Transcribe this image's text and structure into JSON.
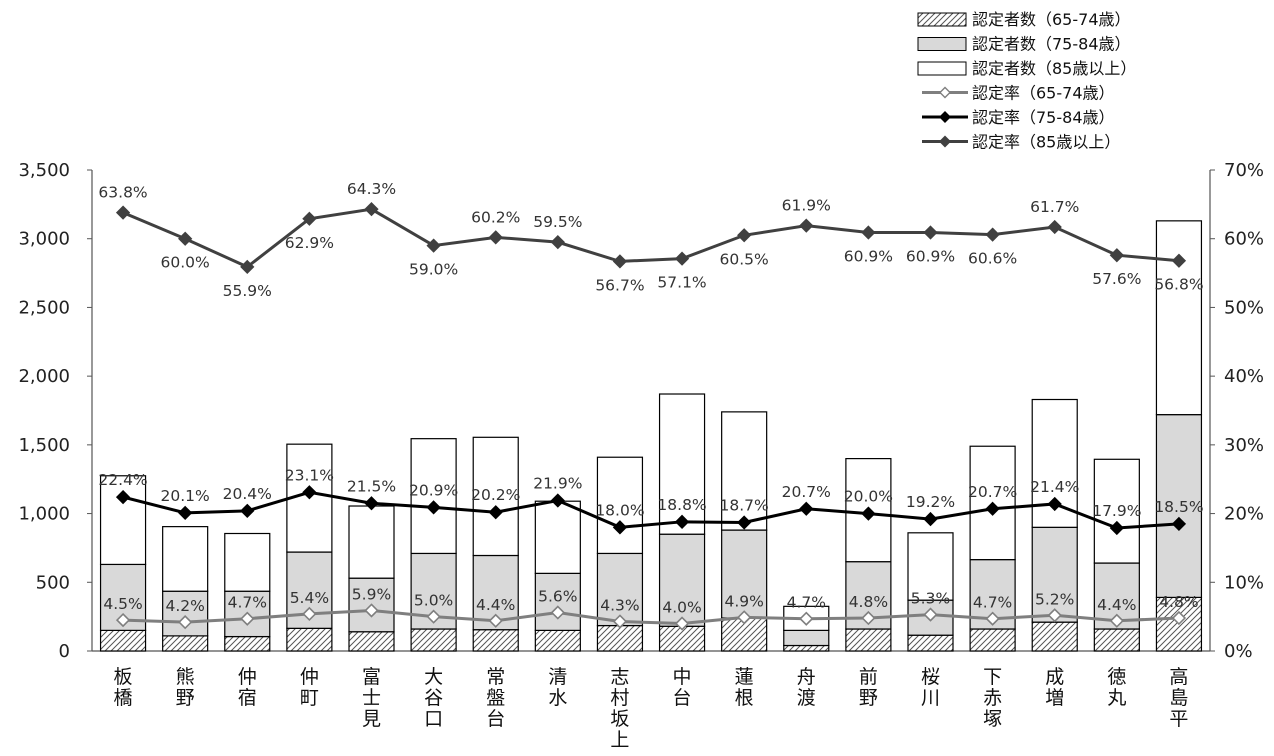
{
  "chart_data": {
    "type": "bar",
    "subtype": "stacked bar with line overlay (dual axis)",
    "categories": [
      "板橋",
      "熊野",
      "仲宿",
      "仲町",
      "富士見",
      "大谷口",
      "常盤台",
      "清水",
      "志村坂上",
      "中台",
      "蓮根",
      "舟渡",
      "前野",
      "桜川",
      "下赤塚",
      "成増",
      "徳丸",
      "高島平"
    ],
    "category_lines": [
      [
        "板",
        "橋"
      ],
      [
        "熊",
        "野"
      ],
      [
        "仲",
        "宿"
      ],
      [
        "仲",
        "町"
      ],
      [
        "富",
        "士",
        "見"
      ],
      [
        "大",
        "谷",
        "口"
      ],
      [
        "常",
        "盤",
        "台"
      ],
      [
        "清",
        "水"
      ],
      [
        "志",
        "村",
        "坂",
        "上"
      ],
      [
        "中",
        "台"
      ],
      [
        "蓮",
        "根"
      ],
      [
        "舟",
        "渡"
      ],
      [
        "前",
        "野"
      ],
      [
        "桜",
        "川"
      ],
      [
        "下",
        "赤",
        "塚"
      ],
      [
        "成",
        "増"
      ],
      [
        "徳",
        "丸"
      ],
      [
        "高",
        "島",
        "平"
      ]
    ],
    "series": [
      {
        "name": "認定者数（65-74歳）",
        "kind": "bar",
        "axis": "left",
        "pattern": "hatch",
        "values": [
          150,
          110,
          105,
          165,
          140,
          160,
          155,
          150,
          185,
          180,
          240,
          40,
          160,
          115,
          160,
          210,
          160,
          390
        ]
      },
      {
        "name": "認定者数（75-84歳）",
        "kind": "bar",
        "axis": "left",
        "color": "#d9d9d9",
        "values": [
          480,
          325,
          330,
          555,
          390,
          550,
          540,
          415,
          525,
          670,
          640,
          110,
          490,
          255,
          505,
          690,
          480,
          1330
        ]
      },
      {
        "name": "認定者数（85歳以上）",
        "kind": "bar",
        "axis": "left",
        "color": "#ffffff",
        "values": [
          645,
          470,
          420,
          785,
          525,
          835,
          860,
          525,
          700,
          1020,
          860,
          175,
          750,
          490,
          825,
          930,
          755,
          1410
        ]
      },
      {
        "name": "認定率（65-74歳）",
        "kind": "line",
        "axis": "right",
        "color": "#7f7f7f",
        "marker": "open-diamond",
        "values": [
          4.5,
          4.2,
          4.7,
          5.4,
          5.9,
          5.0,
          4.4,
          5.6,
          4.3,
          4.0,
          4.9,
          4.7,
          4.8,
          5.3,
          4.7,
          5.2,
          4.4,
          4.8
        ],
        "labels": [
          "4.5%",
          "4.2%",
          "4.7%",
          "5.4%",
          "5.9%",
          "5.0%",
          "4.4%",
          "5.6%",
          "4.3%",
          "4.0%",
          "4.9%",
          "4.7%",
          "4.8%",
          "5.3%",
          "4.7%",
          "5.2%",
          "4.4%",
          "4.8%"
        ]
      },
      {
        "name": "認定率（75-84歳）",
        "kind": "line",
        "axis": "right",
        "color": "#000000",
        "marker": "diamond",
        "values": [
          22.4,
          20.1,
          20.4,
          23.1,
          21.5,
          20.9,
          20.2,
          21.9,
          18.0,
          18.8,
          18.7,
          20.7,
          20.0,
          19.2,
          20.7,
          21.4,
          17.9,
          18.5
        ],
        "labels": [
          "22.4%",
          "20.1%",
          "20.4%",
          "23.1%",
          "21.5%",
          "20.9%",
          "20.2%",
          "21.9%",
          "18.0%",
          "18.8%",
          "18.7%",
          "20.7%",
          "20.0%",
          "19.2%",
          "20.7%",
          "21.4%",
          "17.9%",
          "18.5%"
        ]
      },
      {
        "name": "認定率（85歳以上）",
        "kind": "line",
        "axis": "right",
        "color": "#404040",
        "marker": "diamond",
        "values": [
          63.8,
          60.0,
          55.9,
          62.9,
          64.3,
          59.0,
          60.2,
          59.5,
          56.7,
          57.1,
          60.5,
          61.9,
          60.9,
          60.9,
          60.6,
          61.7,
          57.6,
          56.8
        ],
        "labels": [
          "63.8%",
          "60.0%",
          "55.9%",
          "62.9%",
          "64.3%",
          "59.0%",
          "60.2%",
          "59.5%",
          "56.7%",
          "57.1%",
          "60.5%",
          "61.9%",
          "60.9%",
          "60.9%",
          "60.6%",
          "61.7%",
          "57.6%",
          "56.8%"
        ]
      }
    ],
    "y_left": {
      "min": 0,
      "max": 3500,
      "ticks": [
        "0",
        "500",
        "1,000",
        "1,500",
        "2,000",
        "2,500",
        "3,000",
        "3,500"
      ]
    },
    "y_right": {
      "min": 0,
      "max": 70,
      "ticks": [
        "0%",
        "10%",
        "20%",
        "30%",
        "40%",
        "50%",
        "60%",
        "70%"
      ]
    },
    "legend_position": "top-right",
    "grid": false
  }
}
